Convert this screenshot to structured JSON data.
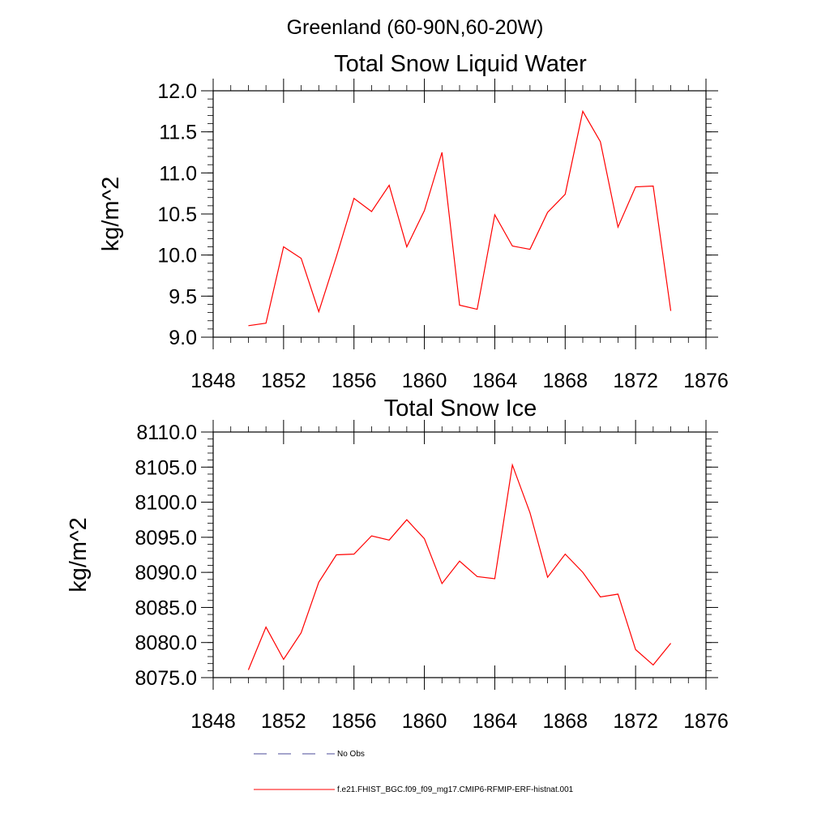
{
  "figure_title": "Greenland (60-90N,60-20W)",
  "chart_data": [
    {
      "type": "line",
      "title": "Total Snow Liquid Water",
      "xlabel": "",
      "ylabel": "kg/m^2",
      "xlim": [
        1848,
        1876
      ],
      "ylim": [
        9.0,
        12.0
      ],
      "x_ticks": [
        1848,
        1852,
        1856,
        1860,
        1864,
        1868,
        1872,
        1876
      ],
      "y_ticks": [
        9.0,
        9.5,
        10.0,
        10.5,
        11.0,
        11.5,
        12.0
      ],
      "y_tick_labels": [
        "9.0",
        "9.5",
        "10.0",
        "10.5",
        "11.0",
        "11.5",
        "12.0"
      ],
      "series": [
        {
          "name": "f.e21.FHIST_BGC.f09_f09_mg17.CMIP6-RFMIP-ERF-histnat.001",
          "color": "#ff0000",
          "x": [
            1850,
            1851,
            1852,
            1853,
            1854,
            1855,
            1856,
            1857,
            1858,
            1859,
            1860,
            1861,
            1862,
            1863,
            1864,
            1865,
            1866,
            1867,
            1868,
            1869,
            1870,
            1871,
            1872,
            1873,
            1874
          ],
          "values": [
            9.14,
            9.17,
            10.1,
            9.96,
            9.31,
            9.98,
            10.69,
            10.53,
            10.85,
            10.1,
            10.54,
            11.25,
            9.39,
            9.34,
            10.49,
            10.11,
            10.07,
            10.52,
            10.74,
            11.75,
            11.38,
            10.34,
            10.83,
            10.84,
            9.32
          ]
        }
      ]
    },
    {
      "type": "line",
      "title": "Total Snow Ice",
      "xlabel": "",
      "ylabel": "kg/m^2",
      "xlim": [
        1848,
        1876
      ],
      "ylim": [
        8075.0,
        8110.0
      ],
      "x_ticks": [
        1848,
        1852,
        1856,
        1860,
        1864,
        1868,
        1872,
        1876
      ],
      "y_ticks": [
        8075.0,
        8080.0,
        8085.0,
        8090.0,
        8095.0,
        8100.0,
        8105.0,
        8110.0
      ],
      "y_tick_labels": [
        "8075.0",
        "8080.0",
        "8085.0",
        "8090.0",
        "8095.0",
        "8100.0",
        "8105.0",
        "8110.0"
      ],
      "series": [
        {
          "name": "f.e21.FHIST_BGC.f09_f09_mg17.CMIP6-RFMIP-ERF-histnat.001",
          "color": "#ff0000",
          "x": [
            1850,
            1851,
            1852,
            1853,
            1854,
            1855,
            1856,
            1857,
            1858,
            1859,
            1860,
            1861,
            1862,
            1863,
            1864,
            1865,
            1866,
            1867,
            1868,
            1869,
            1870,
            1871,
            1872,
            1873,
            1874
          ],
          "values": [
            8076.1,
            8082.2,
            8077.6,
            8081.4,
            8088.6,
            8092.5,
            8092.6,
            8095.2,
            8094.6,
            8097.5,
            8094.8,
            8088.4,
            8091.6,
            8089.4,
            8089.1,
            8105.3,
            8098.5,
            8089.3,
            8092.6,
            8090.0,
            8086.5,
            8086.9,
            8079.0,
            8076.8,
            8079.9
          ]
        }
      ]
    }
  ],
  "legend": {
    "entries": [
      {
        "label": "No Obs",
        "color": "#4b4b9a",
        "style": "dashed"
      },
      {
        "label": "f.e21.FHIST_BGC.f09_f09_mg17.CMIP6-RFMIP-ERF-histnat.001",
        "color": "#ff0000",
        "style": "solid"
      }
    ]
  }
}
